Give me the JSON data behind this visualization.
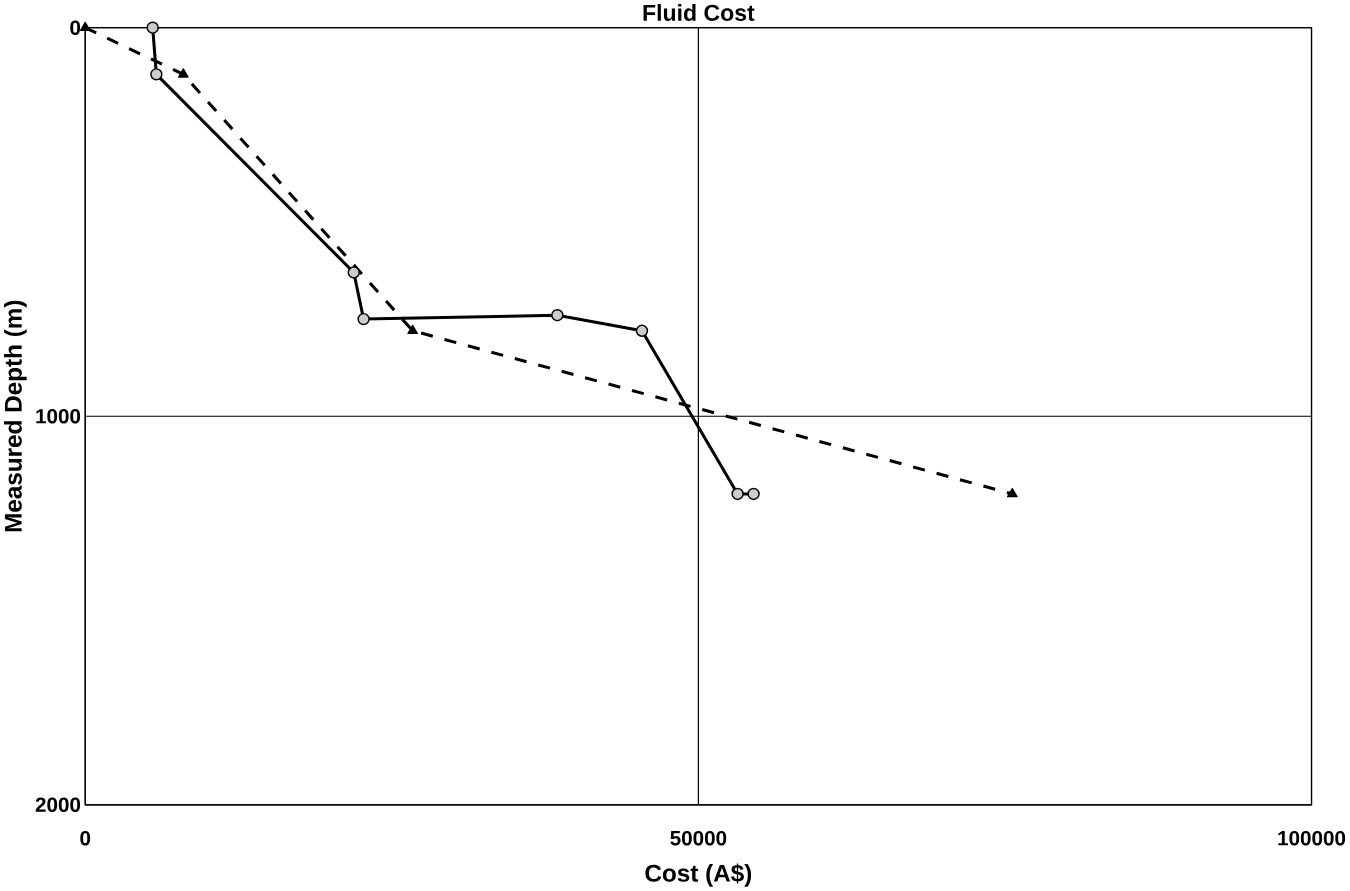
{
  "chart_data": {
    "type": "line",
    "title": "Fluid Cost",
    "xlabel": "Cost (A$)",
    "ylabel": "Measured Depth (m)",
    "xlim": [
      0,
      100000
    ],
    "ylim": [
      2000,
      0
    ],
    "xticks": [
      0,
      50000,
      100000
    ],
    "yticks": [
      0,
      1000,
      2000
    ],
    "grid": true,
    "series": [
      {
        "color": "#000000",
        "marker": "circle",
        "line_style": "solid",
        "x": [
          5500,
          5800,
          21900,
          22700,
          38500,
          45400,
          53200,
          54500
        ],
        "values": [
          0,
          120,
          630,
          750,
          740,
          780,
          1200,
          1200
        ]
      },
      {
        "color": "#000000",
        "marker": "triangle",
        "line_style": "dashed",
        "x": [
          0,
          8000,
          26700,
          75600
        ],
        "values": [
          0,
          120,
          780,
          1200
        ]
      }
    ]
  }
}
